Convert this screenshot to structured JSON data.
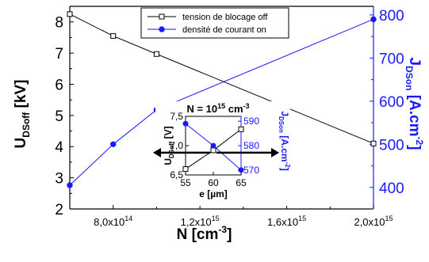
{
  "chart_data": [
    {
      "type": "line",
      "x": [
        600000000000000,
        800000000000000,
        1000000000000000,
        2000000000000000
      ],
      "xlim": [
        600000000000000,
        2000000000000000
      ],
      "x_ticks": [
        800000000000000,
        1200000000000000,
        1600000000000000,
        2000000000000000
      ],
      "x_tick_labels": [
        {
          "m": "8,0x10",
          "e": "14"
        },
        {
          "m": "1,2x10",
          "e": "15"
        },
        {
          "m": "1,6x10",
          "e": "15"
        },
        {
          "m": "2,0x10",
          "e": "15"
        }
      ],
      "xlabel": {
        "main": "N  [cm",
        "sup": "-3",
        "tail": "]"
      },
      "ylabel": {
        "main": "U",
        "sub": "DSoff",
        "tail": " [kV]"
      },
      "ylim": [
        2,
        8.5
      ],
      "y_ticks": [
        2,
        3,
        4,
        5,
        6,
        7,
        8
      ],
      "y2label": {
        "main": "J",
        "sub": "DSon",
        "tail": " [A.cm",
        "sup": "-2",
        "end": "]"
      },
      "y2lim": [
        350,
        820
      ],
      "y2_ticks": [
        400,
        500,
        600,
        700,
        800
      ],
      "legend_position": "top-center",
      "series": [
        {
          "name": "tension de blocage off",
          "axis": "left",
          "marker": "open-square",
          "color": "#000000",
          "values": [
            8.25,
            7.55,
            6.97,
            4.1
          ]
        },
        {
          "name": "densité de courant on",
          "axis": "right",
          "marker": "filled-circle",
          "color": "#1a1aff",
          "values": [
            405,
            500,
            580,
            790
          ]
        }
      ]
    },
    {
      "type": "line",
      "title": {
        "main": "N = 10",
        "sup": "15",
        "tail": " cm",
        "sup2": "-3"
      },
      "x": [
        55,
        60,
        65
      ],
      "xlim": [
        55,
        65
      ],
      "x_ticks": [
        55,
        60,
        65
      ],
      "xlabel": "e [µm]",
      "ylabel": {
        "main": "U",
        "sub": "DSoff",
        "tail": " [V]"
      },
      "ylim": [
        6.5,
        7.5
      ],
      "y_ticks": [
        6.5,
        7.0,
        7.5
      ],
      "y_tick_labels": [
        "6,5",
        "7,0",
        "7,5"
      ],
      "y2label": {
        "main": "J",
        "sub": "DSon",
        "tail": " [A.cm",
        "sup": "-2",
        "end": "]"
      },
      "y2lim": [
        568,
        592
      ],
      "y2_ticks": [
        570,
        580,
        590
      ],
      "series": [
        {
          "axis": "left",
          "marker": "open-square",
          "color": "#000000",
          "values": [
            6.6,
            6.92,
            7.28
          ]
        },
        {
          "axis": "right",
          "marker": "filled-circle",
          "color": "#1a1aff",
          "values": [
            589,
            580,
            570
          ]
        }
      ]
    }
  ]
}
